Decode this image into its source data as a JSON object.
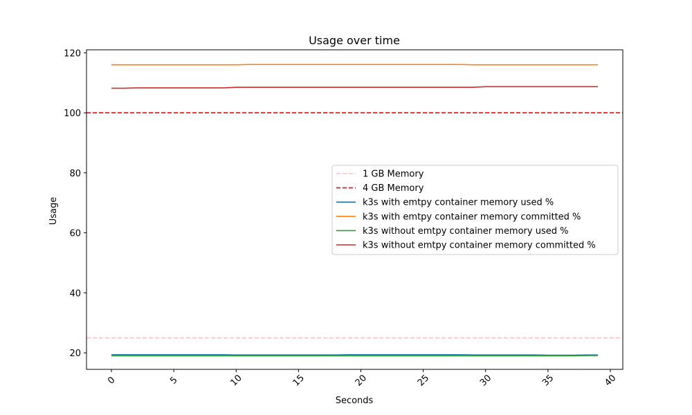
{
  "chart_data": {
    "type": "line",
    "title": "Usage over time",
    "xlabel": "Seconds",
    "ylabel": "Usage",
    "xlim": [
      -2,
      41
    ],
    "ylim": [
      14.5,
      121
    ],
    "xticks": [
      0,
      5,
      10,
      15,
      20,
      25,
      30,
      35,
      40
    ],
    "yticks": [
      20,
      40,
      60,
      80,
      100,
      120
    ],
    "grid": false,
    "legend_position": "center-right",
    "reference_lines": [
      {
        "name": "1 GB Memory",
        "y": 25,
        "color": "#ffc0cb",
        "style": "dashed"
      },
      {
        "name": "4 GB Memory",
        "y": 100,
        "color": "#ff0000",
        "style": "dashed"
      }
    ],
    "x": [
      0,
      1,
      2,
      3,
      4,
      5,
      6,
      7,
      8,
      9,
      10,
      11,
      12,
      13,
      14,
      15,
      16,
      17,
      18,
      19,
      20,
      21,
      22,
      23,
      24,
      25,
      26,
      27,
      28,
      29,
      30,
      31,
      32,
      33,
      34,
      35,
      36,
      37,
      38,
      39
    ],
    "series": [
      {
        "name": "k3s with emtpy container memory used %",
        "color": "#1f77b4",
        "values": [
          19.4,
          19.4,
          19.4,
          19.4,
          19.4,
          19.4,
          19.4,
          19.4,
          19.4,
          19.4,
          19.3,
          19.3,
          19.3,
          19.3,
          19.3,
          19.3,
          19.3,
          19.3,
          19.3,
          19.4,
          19.4,
          19.4,
          19.4,
          19.4,
          19.4,
          19.4,
          19.4,
          19.4,
          19.4,
          19.3,
          19.3,
          19.3,
          19.3,
          19.3,
          19.3,
          19.2,
          19.2,
          19.2,
          19.3,
          19.3
        ]
      },
      {
        "name": "k3s with emtpy container memory committed %",
        "color": "#ff7f0e",
        "values": [
          116.0,
          116.0,
          116.0,
          116.0,
          116.0,
          116.0,
          116.0,
          116.0,
          116.0,
          116.0,
          116.0,
          116.1,
          116.1,
          116.1,
          116.1,
          116.1,
          116.1,
          116.1,
          116.1,
          116.1,
          116.1,
          116.1,
          116.1,
          116.1,
          116.1,
          116.1,
          116.1,
          116.1,
          116.1,
          116.0,
          116.0,
          116.0,
          116.0,
          116.0,
          116.0,
          116.0,
          116.0,
          116.0,
          116.0,
          116.0
        ]
      },
      {
        "name": "k3s without emtpy container  memory used %",
        "color": "#2ca02c",
        "values": [
          19.0,
          19.0,
          19.0,
          19.0,
          19.0,
          19.0,
          19.0,
          19.0,
          19.0,
          19.0,
          19.0,
          19.0,
          19.0,
          19.0,
          19.0,
          19.0,
          19.0,
          19.0,
          19.0,
          19.0,
          19.0,
          19.0,
          19.0,
          19.0,
          19.0,
          19.0,
          19.0,
          19.0,
          19.0,
          19.0,
          19.0,
          19.0,
          19.0,
          19.0,
          19.0,
          19.0,
          19.0,
          19.0,
          19.1,
          19.1
        ]
      },
      {
        "name": "k3s without emtpy container  memory committed %",
        "color": "#d62728",
        "values": [
          108.2,
          108.2,
          108.3,
          108.3,
          108.3,
          108.3,
          108.3,
          108.3,
          108.3,
          108.3,
          108.5,
          108.5,
          108.5,
          108.5,
          108.5,
          108.5,
          108.5,
          108.5,
          108.5,
          108.5,
          108.5,
          108.5,
          108.5,
          108.5,
          108.5,
          108.5,
          108.5,
          108.5,
          108.5,
          108.5,
          108.7,
          108.7,
          108.7,
          108.7,
          108.7,
          108.7,
          108.7,
          108.7,
          108.7,
          108.7
        ]
      }
    ]
  }
}
